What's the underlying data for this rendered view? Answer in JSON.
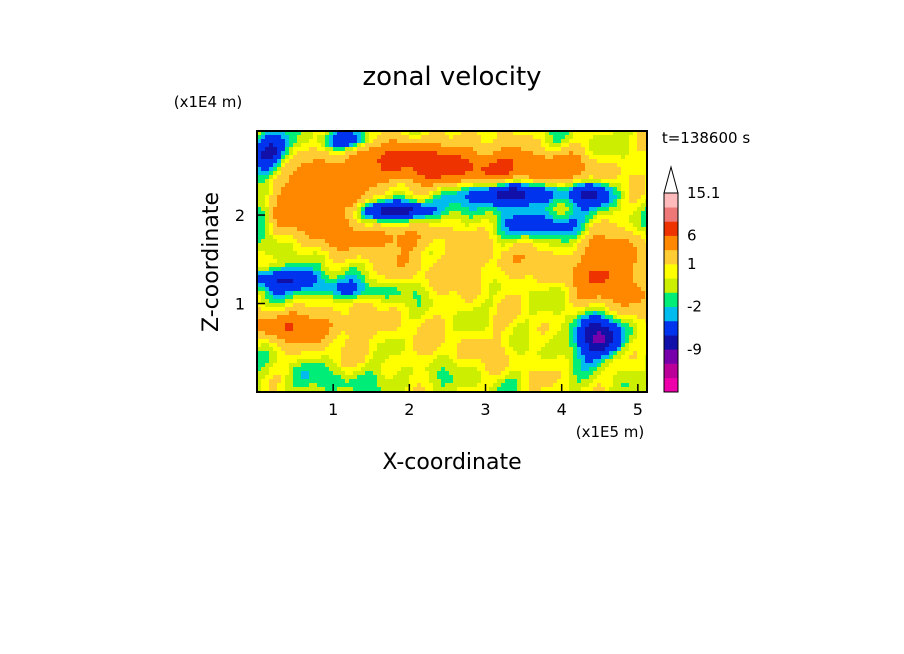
{
  "chart_data": {
    "type": "heatmap",
    "title": "zonal velocity",
    "xlabel": "X-coordinate",
    "ylabel": "Z-coordinate",
    "x_unit": "(x1E5 m)",
    "y_unit": "(x1E4 m)",
    "time_label": "t=138600 s",
    "xlim": [
      0,
      5.12
    ],
    "ylim": [
      0,
      2.95
    ],
    "x_ticks": [
      "1",
      "2",
      "3",
      "4",
      "5"
    ],
    "y_ticks": [
      "1",
      "2"
    ],
    "colorbar": {
      "levels": [
        -15,
        -12,
        -9,
        -6,
        -3,
        -2,
        -1,
        0,
        1,
        3,
        6,
        9,
        12,
        15.1
      ],
      "tick_labels": [
        "15.1",
        "6",
        "1",
        "-2",
        "-9"
      ],
      "colors": [
        "#ee00aa",
        "#bb0099",
        "#7700aa",
        "#1111aa",
        "#0033ee",
        "#00bbee",
        "#00ee77",
        "#ccee00",
        "#ffff00",
        "#ffcc33",
        "#ff8800",
        "#ee3300",
        "#ee7777",
        "#ffbbbb"
      ]
    },
    "blobs": [
      {
        "x": 2.0,
        "z": 2.6,
        "rx": 1.05,
        "rz": 0.25,
        "v": 7
      },
      {
        "x": 0.7,
        "z": 2.15,
        "rx": 0.6,
        "rz": 0.35,
        "v": 6
      },
      {
        "x": 1.6,
        "z": 1.75,
        "rx": 0.75,
        "rz": 0.16,
        "v": 4
      },
      {
        "x": 1.85,
        "z": 2.05,
        "rx": 0.45,
        "rz": 0.11,
        "v": -9
      },
      {
        "x": 3.3,
        "z": 2.25,
        "rx": 0.6,
        "rz": 0.15,
        "v": -9
      },
      {
        "x": 3.5,
        "z": 2.5,
        "rx": 1.0,
        "rz": 0.2,
        "v": 6
      },
      {
        "x": 0.35,
        "z": 1.28,
        "rx": 0.6,
        "rz": 0.12,
        "v": -6
      },
      {
        "x": 1.1,
        "z": 1.15,
        "rx": 0.7,
        "rz": 0.1,
        "v": -3
      },
      {
        "x": 0.5,
        "z": 0.75,
        "rx": 0.7,
        "rz": 0.18,
        "v": 5
      },
      {
        "x": 2.8,
        "z": 1.45,
        "rx": 1.5,
        "rz": 0.25,
        "v": 2
      },
      {
        "x": 2.2,
        "z": 0.5,
        "rx": 2.2,
        "rz": 0.45,
        "v": 1
      },
      {
        "x": 0.15,
        "z": 2.7,
        "rx": 0.25,
        "rz": 0.2,
        "v": -7
      },
      {
        "x": 4.65,
        "z": 1.35,
        "rx": 0.5,
        "rz": 0.4,
        "v": 6
      },
      {
        "x": 4.4,
        "z": 2.25,
        "rx": 0.3,
        "rz": 0.15,
        "v": -6
      },
      {
        "x": 4.3,
        "z": 0.65,
        "rx": 0.3,
        "rz": 0.25,
        "v": -4
      },
      {
        "x": 4.55,
        "z": 0.6,
        "rx": 0.25,
        "rz": 0.2,
        "v": -8
      },
      {
        "x": 1.3,
        "z": 0.15,
        "rx": 1.5,
        "rz": 0.2,
        "v": -1.5
      },
      {
        "x": 0.1,
        "z": 1.95,
        "rx": 0.15,
        "rz": 0.35,
        "v": -3
      },
      {
        "x": 1.2,
        "z": 2.85,
        "rx": 0.35,
        "rz": 0.12,
        "v": -6
      },
      {
        "x": 3.8,
        "z": 1.9,
        "rx": 0.5,
        "rz": 0.15,
        "v": -5
      }
    ]
  }
}
